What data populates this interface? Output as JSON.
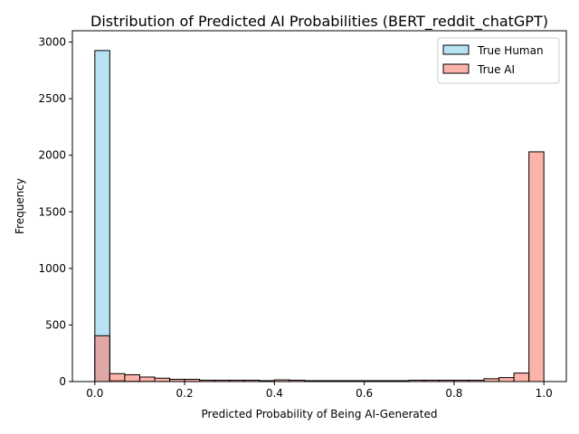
{
  "chart_data": {
    "type": "bar",
    "title": "Distribution of Predicted AI Probabilities (BERT_reddit_chatGPT)",
    "xlabel": "Predicted Probability of Being AI-Generated",
    "ylabel": "Frequency",
    "xlim": [
      -0.05,
      1.05
    ],
    "ylim": [
      0,
      3100
    ],
    "xticks": [
      0.0,
      0.2,
      0.4,
      0.6,
      0.8,
      1.0
    ],
    "xtick_labels": [
      "0.0",
      "0.2",
      "0.4",
      "0.6",
      "0.8",
      "1.0"
    ],
    "yticks": [
      0,
      500,
      1000,
      1500,
      2000,
      2500,
      3000
    ],
    "ytick_labels": [
      "0",
      "500",
      "1000",
      "1500",
      "2000",
      "2500",
      "3000"
    ],
    "grid": false,
    "legend_position": "top-right",
    "bin_edges": [
      0.0,
      0.0333,
      0.0667,
      0.1,
      0.1333,
      0.1667,
      0.2,
      0.2333,
      0.2667,
      0.3,
      0.3333,
      0.3667,
      0.4,
      0.4333,
      0.4667,
      0.5,
      0.5333,
      0.5667,
      0.6,
      0.6333,
      0.6667,
      0.7,
      0.7333,
      0.7667,
      0.8,
      0.8333,
      0.8667,
      0.9,
      0.9333,
      0.9667,
      1.0
    ],
    "series": [
      {
        "name": "True Human",
        "color": "#87CEEB",
        "values": [
          2925,
          8,
          3,
          2,
          1,
          1,
          1,
          0,
          0,
          0,
          0,
          0,
          0,
          0,
          0,
          0,
          0,
          0,
          0,
          0,
          0,
          0,
          0,
          0,
          0,
          0,
          0,
          0,
          0,
          0
        ]
      },
      {
        "name": "True AI",
        "color": "#FA8072",
        "values": [
          405,
          70,
          60,
          40,
          30,
          20,
          20,
          12,
          12,
          12,
          12,
          8,
          15,
          12,
          8,
          8,
          8,
          8,
          8,
          8,
          8,
          12,
          12,
          12,
          12,
          12,
          25,
          35,
          75,
          2030
        ]
      }
    ]
  }
}
